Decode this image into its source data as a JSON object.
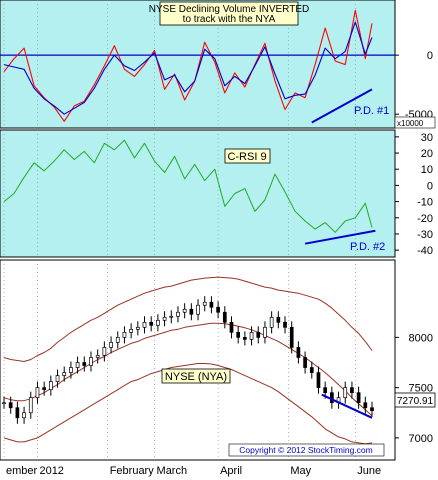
{
  "chart_data": [
    {
      "type": "line",
      "panel": "volume",
      "title_lines": [
        "NYSE Declining Volume INVERTED",
        "to track with the NYA"
      ],
      "annotation": "P.D. #1",
      "scale_note": "x10000",
      "ylim": [
        -6000,
        4500
      ],
      "yticks": [
        -5000,
        0
      ],
      "ytick_labels": [
        "-5000",
        "0"
      ],
      "reference_line": 0,
      "colors": {
        "raw": "#ff0000",
        "smooth": "#0000cc",
        "ref": "#0000cc",
        "background": "#b4f0f0"
      },
      "x": [
        0,
        3,
        6,
        9,
        12,
        15,
        18,
        21,
        24,
        27,
        30,
        33,
        36,
        39,
        42,
        45,
        48,
        51,
        54,
        57,
        60,
        63,
        66,
        69,
        72,
        75,
        78,
        81,
        84,
        87,
        90,
        93,
        96,
        99,
        102,
        105,
        108,
        110
      ],
      "series": [
        {
          "id": "raw",
          "values": [
            -1400,
            -300,
            600,
            -2600,
            -3600,
            -4400,
            -5600,
            -4300,
            -3900,
            -2500,
            -900,
            800,
            -1200,
            -1800,
            -800,
            400,
            -2900,
            -1600,
            -3800,
            -2200,
            1100,
            -600,
            -3200,
            -1500,
            -2700,
            -800,
            1000,
            -2200,
            -4600,
            -3200,
            -3600,
            -800,
            2300,
            -500,
            -800,
            3800,
            -300,
            2700
          ]
        },
        {
          "id": "smooth",
          "values": [
            -800,
            -1000,
            -1200,
            -2800,
            -3700,
            -4300,
            -5000,
            -4500,
            -4000,
            -2800,
            -1200,
            0,
            -900,
            -1300,
            -600,
            200,
            -2100,
            -1700,
            -3100,
            -2200,
            500,
            -300,
            -2600,
            -1800,
            -2400,
            -900,
            700,
            -1600,
            -3700,
            -3400,
            -3300,
            -1700,
            600,
            -300,
            300,
            2800,
            100,
            1500
          ]
        }
      ]
    },
    {
      "type": "line",
      "panel": "rsi",
      "title": "C-RSI 9",
      "annotation": "P.D. #2",
      "ylim": [
        -43,
        33
      ],
      "yticks": [
        30,
        20,
        10,
        0,
        -10,
        -20,
        -30,
        -40
      ],
      "ytick_labels": [
        "30",
        "20",
        "10",
        "0",
        "-10",
        "-20",
        "-30",
        "-40"
      ],
      "colors": {
        "line": "#22aa22",
        "background": "#b4f0f0"
      },
      "x": [
        0,
        3,
        6,
        9,
        12,
        15,
        18,
        21,
        24,
        27,
        30,
        33,
        36,
        39,
        42,
        45,
        48,
        51,
        54,
        57,
        60,
        63,
        66,
        69,
        72,
        75,
        78,
        81,
        84,
        87,
        90,
        93,
        96,
        99,
        102,
        105,
        108,
        110
      ],
      "series": [
        {
          "id": "crsi",
          "values": [
            -10,
            -5,
            5,
            14,
            9,
            15,
            22,
            16,
            21,
            14,
            26,
            22,
            28,
            17,
            26,
            15,
            8,
            18,
            4,
            13,
            3,
            10,
            -13,
            -5,
            -2,
            -16,
            -9,
            7,
            -4,
            -16,
            -22,
            -27,
            -23,
            -29,
            -22,
            -20,
            -11,
            -26
          ]
        }
      ]
    },
    {
      "type": "candlestick",
      "panel": "price",
      "title": "NYSE (NYA)",
      "last_value_label": "7270.91",
      "copyright": "Copyright © 2012 StockTiming.com",
      "ylim": [
        6800,
        8750
      ],
      "yticks": [
        8000,
        7500,
        7000
      ],
      "ytick_labels": [
        "8000",
        "7500",
        "7000"
      ],
      "xtick_labels": [
        "ember",
        "2012",
        "February",
        "March",
        "April",
        "May",
        "June"
      ],
      "xtick_positions": [
        0,
        10,
        31,
        45,
        64,
        85,
        105
      ],
      "colors": {
        "candles": "#000000",
        "bands": "#993322",
        "trendline": "#0000cc",
        "background": "#ffffff"
      },
      "x": [
        0,
        2,
        4,
        6,
        8,
        10,
        12,
        14,
        16,
        18,
        20,
        22,
        24,
        26,
        28,
        30,
        32,
        34,
        36,
        38,
        40,
        42,
        44,
        46,
        48,
        50,
        52,
        54,
        56,
        58,
        60,
        62,
        64,
        66,
        68,
        70,
        72,
        74,
        76,
        78,
        80,
        82,
        84,
        86,
        88,
        90,
        92,
        94,
        96,
        98,
        100,
        102,
        104,
        106,
        108,
        110
      ],
      "close": [
        7350,
        7300,
        7200,
        7250,
        7400,
        7500,
        7480,
        7560,
        7620,
        7650,
        7700,
        7750,
        7720,
        7800,
        7820,
        7900,
        7950,
        8000,
        8050,
        8080,
        8100,
        8150,
        8120,
        8170,
        8200,
        8210,
        8250,
        8280,
        8230,
        8320,
        8350,
        8300,
        8250,
        8150,
        8050,
        8000,
        7980,
        8050,
        8000,
        8100,
        8200,
        8150,
        8100,
        7900,
        7800,
        7700,
        7650,
        7500,
        7450,
        7350,
        7400,
        7500,
        7450,
        7350,
        7300,
        7270.91
      ],
      "series": [
        {
          "id": "upper_band",
          "values": [
            7800,
            7780,
            7770,
            7760,
            7780,
            7820,
            7850,
            7890,
            7950,
            8000,
            8050,
            8090,
            8130,
            8170,
            8200,
            8240,
            8280,
            8320,
            8350,
            8380,
            8410,
            8440,
            8460,
            8480,
            8500,
            8510,
            8530,
            8550,
            8570,
            8580,
            8590,
            8595,
            8600,
            8595,
            8590,
            8580,
            8560,
            8540,
            8520,
            8500,
            8490,
            8470,
            8460,
            8450,
            8440,
            8420,
            8400,
            8380,
            8340,
            8290,
            8230,
            8170,
            8100,
            8040,
            7960,
            7870
          ]
        },
        {
          "id": "mid_band",
          "values": [
            7400,
            7380,
            7370,
            7370,
            7390,
            7420,
            7450,
            7490,
            7530,
            7580,
            7620,
            7660,
            7700,
            7740,
            7780,
            7810,
            7850,
            7880,
            7910,
            7940,
            7960,
            7990,
            8010,
            8030,
            8050,
            8070,
            8080,
            8100,
            8110,
            8120,
            8130,
            8140,
            8140,
            8135,
            8125,
            8110,
            8095,
            8075,
            8050,
            8020,
            7990,
            7960,
            7920,
            7880,
            7840,
            7800,
            7750,
            7700,
            7650,
            7590,
            7530,
            7470,
            7400,
            7340,
            7280,
            7220
          ]
        },
        {
          "id": "lower_band",
          "values": [
            7000,
            6980,
            6960,
            6960,
            6980,
            7000,
            7040,
            7080,
            7120,
            7160,
            7200,
            7240,
            7280,
            7320,
            7360,
            7400,
            7440,
            7480,
            7520,
            7560,
            7580,
            7610,
            7640,
            7660,
            7680,
            7700,
            7710,
            7720,
            7730,
            7740,
            7740,
            7735,
            7720,
            7700,
            7680,
            7650,
            7620,
            7590,
            7560,
            7530,
            7500,
            7460,
            7410,
            7360,
            7310,
            7260,
            7210,
            7150,
            7090,
            7050,
            7010,
            6990,
            6960,
            6950,
            6940,
            6950
          ]
        }
      ]
    }
  ]
}
